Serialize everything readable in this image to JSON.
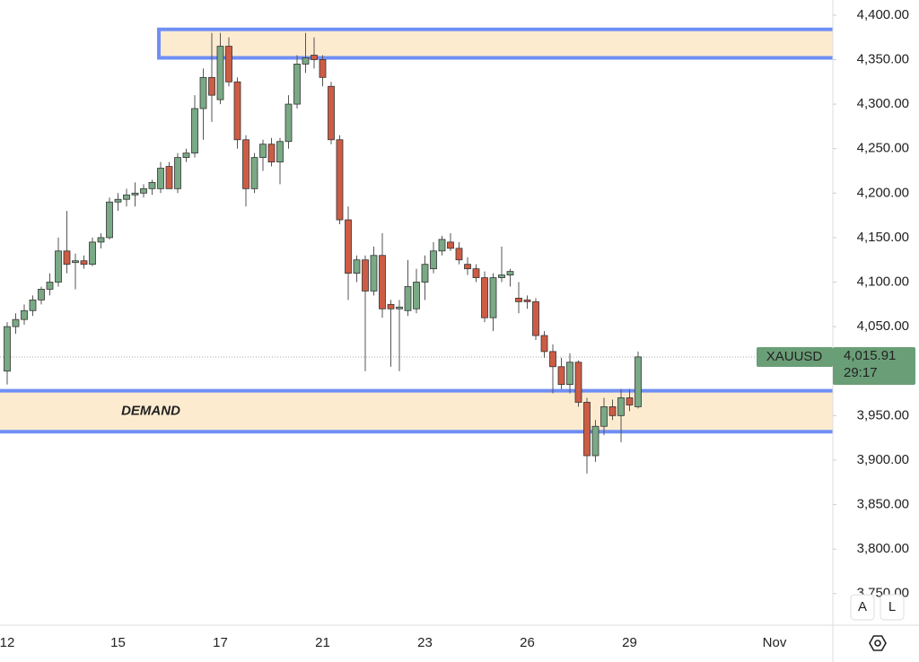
{
  "chart_data": {
    "type": "candlestick",
    "categories": [
      "12",
      null,
      null,
      null,
      null,
      null,
      null,
      null,
      null,
      null,
      null,
      null,
      null,
      "15",
      null,
      null,
      null,
      null,
      null,
      null,
      null,
      null,
      null,
      null,
      null,
      "17",
      null,
      null,
      null,
      null,
      null,
      null,
      null,
      null,
      null,
      null,
      null,
      "21",
      null,
      null,
      null,
      null,
      null,
      null,
      null,
      null,
      null,
      null,
      null,
      "23",
      null,
      null,
      null,
      null,
      null,
      null,
      null,
      null,
      null,
      null,
      null,
      "26",
      null,
      null,
      null,
      null,
      null,
      null,
      null,
      null,
      null,
      null,
      null,
      "29",
      null,
      null,
      null,
      null,
      null,
      null,
      null,
      null,
      null,
      null,
      null,
      null,
      null,
      null,
      null,
      null,
      "Nov",
      null,
      null,
      null,
      null,
      null,
      null
    ],
    "open": [
      4000,
      4050,
      4058,
      4068,
      4080,
      4092,
      4100,
      4135,
      4122,
      4124,
      4120,
      4145,
      4150,
      4190,
      4193,
      4198,
      4200,
      4205,
      4205,
      4230,
      4205,
      4240,
      4245,
      4295,
      4330,
      4305,
      4365,
      4325,
      4260,
      4205,
      4240,
      4255,
      4235,
      4258,
      4300,
      4345,
      4355,
      4350,
      4320,
      4260,
      4170,
      4110,
      4125,
      4090,
      4130,
      4075,
      4070,
      4068,
      4070,
      4100,
      4115,
      4135,
      4145,
      4138,
      4120,
      4115,
      4105,
      4060,
      4105,
      4108,
      4082,
      4080,
      4078,
      4040,
      4022,
      4005,
      3985,
      4010,
      3965,
      3905,
      3938,
      3960,
      3950,
      3970,
      3960,
      null,
      null,
      null,
      null,
      null,
      null,
      null,
      null,
      null,
      null,
      null,
      null,
      null,
      null,
      null,
      null,
      null,
      null,
      null,
      null,
      null,
      null
    ],
    "high": [
      4055,
      4065,
      4075,
      4085,
      4095,
      4110,
      4150,
      4180,
      4132,
      4130,
      4150,
      4155,
      4195,
      4200,
      4205,
      4212,
      4210,
      4215,
      4235,
      4235,
      4245,
      4250,
      4310,
      4340,
      4380,
      4380,
      4375,
      4330,
      4265,
      4245,
      4260,
      4262,
      4262,
      4310,
      4355,
      4380,
      4375,
      4355,
      4325,
      4265,
      4185,
      4130,
      4130,
      4140,
      4155,
      4080,
      4080,
      4125,
      4115,
      4130,
      4145,
      4152,
      4155,
      4145,
      4128,
      4120,
      4112,
      4110,
      4140,
      4115,
      4100,
      4085,
      4082,
      4045,
      4030,
      4015,
      4020,
      4012,
      3970,
      3945,
      3970,
      3968,
      3980,
      3980,
      4022,
      null,
      null,
      null,
      null,
      null,
      null,
      null,
      null,
      null,
      null,
      null,
      null,
      null,
      null,
      null,
      null,
      null,
      null,
      null,
      null,
      null,
      null
    ],
    "low": [
      3985,
      4042,
      4052,
      4062,
      4075,
      4085,
      4095,
      4110,
      4092,
      4115,
      4118,
      4138,
      4148,
      4180,
      4185,
      4185,
      4195,
      4198,
      4200,
      4205,
      4200,
      4235,
      4240,
      4260,
      4280,
      4300,
      4320,
      4250,
      4185,
      4200,
      4225,
      4230,
      4210,
      4250,
      4295,
      4335,
      4340,
      4320,
      4255,
      4165,
      4080,
      4100,
      4000,
      4085,
      4060,
      4005,
      4000,
      4062,
      4065,
      4080,
      4110,
      4130,
      4135,
      4120,
      4108,
      4100,
      4055,
      4045,
      4100,
      4095,
      4065,
      4070,
      4035,
      4015,
      3975,
      3980,
      3975,
      3960,
      3885,
      3898,
      3928,
      3945,
      3920,
      3955,
      3958,
      null,
      null,
      null,
      null,
      null,
      null,
      null,
      null,
      null,
      null,
      null,
      null,
      null,
      null,
      null,
      null,
      null,
      null,
      null,
      null,
      null,
      null
    ],
    "close": [
      4050,
      4058,
      4068,
      4080,
      4092,
      4100,
      4135,
      4120,
      4124,
      4120,
      4145,
      4150,
      4190,
      4193,
      4198,
      4200,
      4205,
      4212,
      4228,
      4205,
      4240,
      4245,
      4295,
      4330,
      4310,
      4365,
      4325,
      4260,
      4205,
      4240,
      4255,
      4235,
      4258,
      4300,
      4345,
      4352,
      4350,
      4330,
      4260,
      4170,
      4110,
      4125,
      4090,
      4130,
      4070,
      4070,
      4072,
      4095,
      4100,
      4120,
      4135,
      4148,
      4138,
      4125,
      4115,
      4105,
      4060,
      4105,
      4108,
      4112,
      4078,
      4078,
      4040,
      4022,
      4005,
      3985,
      4010,
      3965,
      3905,
      3938,
      3960,
      3950,
      3970,
      3962,
      4016,
      null,
      null,
      null,
      null,
      null,
      null,
      null,
      null,
      null,
      null,
      null,
      null,
      null,
      null,
      null,
      null,
      null,
      null,
      null,
      null,
      null,
      null
    ],
    "up_color": "#79a985",
    "down_color": "#cd5c45",
    "ylim": [
      3714.5,
      4417
    ],
    "yticks": [
      {
        "value": 3750,
        "label": "3,750.00"
      },
      {
        "value": 3800,
        "label": "3,800.00"
      },
      {
        "value": 3850,
        "label": "3,850.00"
      },
      {
        "value": 3900,
        "label": "3,900.00"
      },
      {
        "value": 3950,
        "label": "3,950.00"
      },
      {
        "value": 4000,
        "label": "4,000.00"
      },
      {
        "value": 4050,
        "label": "4,050.00"
      },
      {
        "value": 4100,
        "label": "4,100.00"
      },
      {
        "value": 4150,
        "label": "4,150.00"
      },
      {
        "value": 4200,
        "label": "4,200.00"
      },
      {
        "value": 4250,
        "label": "4,250.00"
      },
      {
        "value": 4300,
        "label": "4,300.00"
      },
      {
        "value": 4350,
        "label": "4,350.00"
      },
      {
        "value": 4400,
        "label": "4,400.00"
      }
    ],
    "zones": [
      {
        "low": 4352,
        "high": 4384
      },
      {
        "label": "DEMAND",
        "low": 3932,
        "high": 3978
      }
    ],
    "zone_color": "#6f8ff5",
    "last_price": {
      "symbol": "XAUUSD",
      "value": 4015.91,
      "value_label": "4,015.91",
      "countdown": "29:17",
      "color": "#6a9e77"
    },
    "controls": [
      "A",
      "L"
    ]
  }
}
